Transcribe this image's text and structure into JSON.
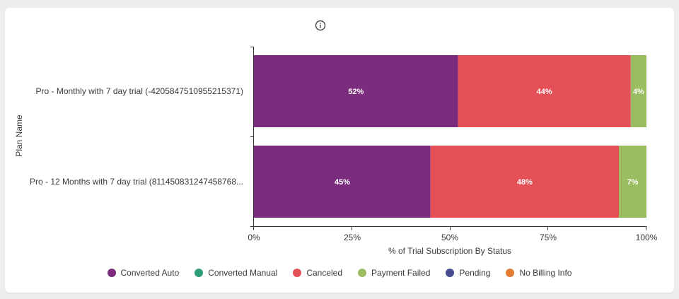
{
  "colors": {
    "background": "#eeeeef",
    "card": "#ffffff",
    "axis": "#333333"
  },
  "icons": {
    "info": "info-circle-icon"
  },
  "chart_data": {
    "type": "bar",
    "orientation": "horizontal",
    "stacked": true,
    "title": "",
    "xlabel": "% of Trial Subscription By Status",
    "ylabel": "Plan Name",
    "xlim": [
      0,
      100
    ],
    "x_ticks": [
      "0%",
      "25%",
      "50%",
      "75%",
      "100%"
    ],
    "categories": [
      "Pro - Monthly with 7 day trial (-4205847510955215371)",
      "Pro - 12 Months with 7 day trial (811450831247458768..."
    ],
    "series": [
      {
        "name": "Converted Auto",
        "color": "#7b2d7d",
        "values": [
          52,
          45
        ],
        "labels": [
          "52%",
          "45%"
        ]
      },
      {
        "name": "Converted Manual",
        "color": "#2f9e78",
        "values": [
          0,
          0
        ],
        "labels": [
          "",
          ""
        ]
      },
      {
        "name": "Canceled",
        "color": "#e35157",
        "values": [
          44,
          48
        ],
        "labels": [
          "44%",
          "48%"
        ]
      },
      {
        "name": "Payment Failed",
        "color": "#9bbd61",
        "values": [
          4,
          7
        ],
        "labels": [
          "4%",
          "7%"
        ]
      },
      {
        "name": "Pending",
        "color": "#474e8f",
        "values": [
          0,
          0
        ],
        "labels": [
          "",
          ""
        ]
      },
      {
        "name": "No Billing Info",
        "color": "#e27c35",
        "values": [
          0,
          0
        ],
        "labels": [
          "",
          ""
        ]
      }
    ],
    "grid": false,
    "legend_position": "bottom"
  }
}
